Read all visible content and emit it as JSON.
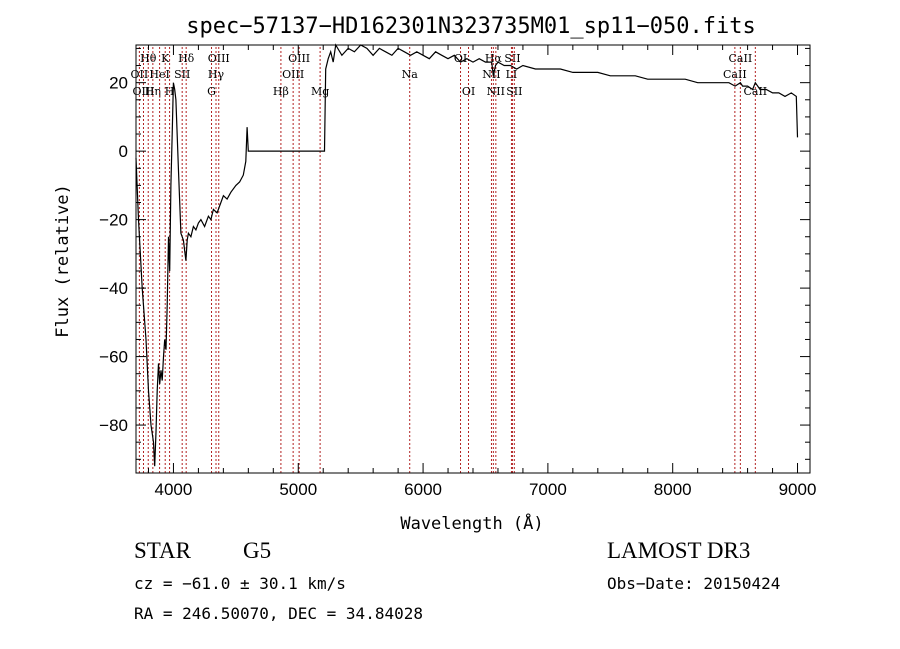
{
  "chart_data": {
    "type": "line",
    "title": "spec−57137−HD162301N323735M01_sp11−050.fits",
    "xlabel": "Wavelength (Å)",
    "ylabel": "Flux (relative)",
    "xlim": [
      3700,
      9100
    ],
    "ylim": [
      -94,
      31
    ],
    "xticks": [
      4000,
      5000,
      6000,
      7000,
      8000,
      9000
    ],
    "xtick_labels": [
      "4000",
      "5000",
      "6000",
      "7000",
      "8000",
      "9000"
    ],
    "yticks": [
      -80,
      -60,
      -40,
      -20,
      0,
      20
    ],
    "ytick_labels": [
      "−80",
      "−60",
      "−40",
      "−20",
      "0",
      "20"
    ],
    "grid": false,
    "line_color": "#000000",
    "marker_color": "#b22222",
    "series": [
      {
        "name": "flux",
        "x": [
          3700,
          3720,
          3750,
          3780,
          3800,
          3820,
          3840,
          3850,
          3860,
          3870,
          3880,
          3890,
          3900,
          3910,
          3920,
          3930,
          3940,
          3950,
          3960,
          3970,
          3980,
          3990,
          4000,
          4010,
          4020,
          4040,
          4060,
          4080,
          4100,
          4110,
          4120,
          4140,
          4160,
          4180,
          4200,
          4220,
          4250,
          4280,
          4300,
          4320,
          4350,
          4380,
          4400,
          4430,
          4460,
          4500,
          4530,
          4560,
          4580,
          4590,
          4600,
          5210,
          5220,
          5240,
          5260,
          5280,
          5300,
          5350,
          5400,
          5450,
          5500,
          5550,
          5600,
          5650,
          5700,
          5750,
          5800,
          5850,
          5900,
          5950,
          6000,
          6050,
          6100,
          6150,
          6200,
          6250,
          6300,
          6350,
          6400,
          6450,
          6500,
          6550,
          6563,
          6580,
          6600,
          6650,
          6700,
          6750,
          6800,
          6900,
          7000,
          7100,
          7200,
          7300,
          7400,
          7500,
          7600,
          7700,
          7800,
          7900,
          8000,
          8100,
          8200,
          8300,
          8400,
          8450,
          8500,
          8542,
          8560,
          8600,
          8640,
          8662,
          8700,
          8750,
          8800,
          8850,
          8900,
          8950,
          8990,
          9000
        ],
        "values": [
          -2,
          -20,
          -40,
          -55,
          -70,
          -80,
          -85,
          -92,
          -82,
          -70,
          -62,
          -68,
          -64,
          -67,
          -60,
          -55,
          -58,
          -45,
          -25,
          -35,
          -10,
          5,
          20,
          18,
          15,
          -5,
          -24,
          -26,
          -32,
          -26,
          -24,
          -25,
          -22,
          -23,
          -21,
          -20,
          -22,
          -19,
          -20,
          -17,
          -18,
          -15,
          -13,
          -14,
          -12,
          -10,
          -9,
          -7,
          -3,
          7,
          0,
          0,
          24,
          27,
          29,
          26,
          31,
          28,
          30,
          29,
          31,
          30,
          28,
          30,
          29,
          28,
          30,
          29,
          28,
          29,
          28,
          27,
          29,
          28,
          27,
          28,
          26,
          27,
          26,
          27,
          26,
          26,
          22,
          25,
          26,
          25,
          25,
          24,
          25,
          24,
          24,
          24,
          23,
          23,
          23,
          22,
          22,
          22,
          21,
          21,
          21,
          21,
          20,
          20,
          20,
          20,
          19,
          20,
          19,
          19,
          18,
          20,
          18,
          18,
          17,
          17,
          16,
          17,
          16,
          4
        ]
      }
    ],
    "line_markers": [
      {
        "label": "Hθ",
        "wavelength": 3798,
        "row": 1
      },
      {
        "label": "OII",
        "wavelength": 3727,
        "row": 2
      },
      {
        "label": "OIII",
        "wavelength": 3760,
        "row": 3
      },
      {
        "label": "Hη",
        "wavelength": 3835,
        "row": 3
      },
      {
        "label": "HeI",
        "wavelength": 3889,
        "row": 2
      },
      {
        "label": "K",
        "wavelength": 3934,
        "row": 1
      },
      {
        "label": "H",
        "wavelength": 3969,
        "row": 3
      },
      {
        "label": "SII",
        "wavelength": 4070,
        "row": 2
      },
      {
        "label": "Hδ",
        "wavelength": 4102,
        "row": 1
      },
      {
        "label": "OIII",
        "wavelength": 4363,
        "row": 1
      },
      {
        "label": "Hγ",
        "wavelength": 4341,
        "row": 2
      },
      {
        "label": "G",
        "wavelength": 4305,
        "row": 3
      },
      {
        "label": "Hβ",
        "wavelength": 4861,
        "row": 3
      },
      {
        "label": "OIII",
        "wavelength": 5007,
        "row": 1
      },
      {
        "label": "OIII",
        "wavelength": 4959,
        "row": 2
      },
      {
        "label": "Mg",
        "wavelength": 5175,
        "row": 3
      },
      {
        "label": "Na",
        "wavelength": 5893,
        "row": 2
      },
      {
        "label": "OI",
        "wavelength": 6300,
        "row": 1
      },
      {
        "label": "OI",
        "wavelength": 6364,
        "row": 3
      },
      {
        "label": "Hα",
        "wavelength": 6563,
        "row": 1
      },
      {
        "label": "NII",
        "wavelength": 6548,
        "row": 2
      },
      {
        "label": "NII",
        "wavelength": 6583,
        "row": 3
      },
      {
        "label": "SII",
        "wavelength": 6716,
        "row": 1
      },
      {
        "label": "LI",
        "wavelength": 6708,
        "row": 2
      },
      {
        "label": "SII",
        "wavelength": 6731,
        "row": 3
      },
      {
        "label": "CaII",
        "wavelength": 8542,
        "row": 1
      },
      {
        "label": "CaII",
        "wavelength": 8498,
        "row": 2
      },
      {
        "label": "CaII",
        "wavelength": 8662,
        "row": 3
      }
    ]
  },
  "info": {
    "object_class": "STAR",
    "subclass": "G5",
    "survey": "LAMOST DR3",
    "redshift_line": "cz = −61.0 ± 30.1 km/s",
    "obs_date": "Obs−Date: 20150424",
    "coords": "RA = 246.50070, DEC =  34.84028"
  }
}
